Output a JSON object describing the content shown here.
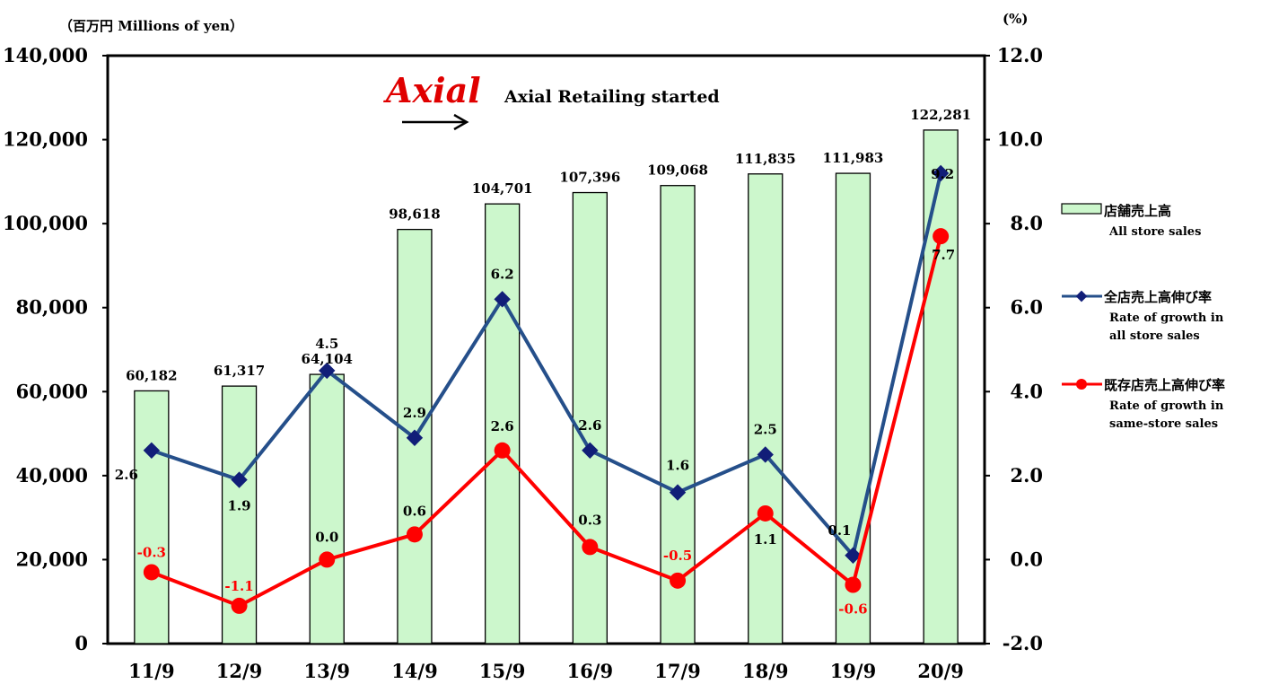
{
  "chart_data": {
    "type": "bar",
    "categories": [
      "11/9",
      "12/9",
      "13/9",
      "14/9",
      "15/9",
      "16/9",
      "17/9",
      "18/9",
      "19/9",
      "20/9"
    ],
    "left_axis": {
      "unit_label": "（百万円 Millions of yen）",
      "ylim": [
        0,
        140000
      ],
      "ticks": [
        "0",
        "20,000",
        "40,000",
        "60,000",
        "80,000",
        "100,000",
        "120,000",
        "140,000"
      ]
    },
    "right_axis": {
      "unit_label": "(%)",
      "ylim": [
        -2.0,
        12.0
      ],
      "ticks": [
        "-2.0",
        "0.0",
        "2.0",
        "4.0",
        "6.0",
        "8.0",
        "10.0",
        "12.0"
      ]
    },
    "series": [
      {
        "name_ja": "店舗売上高",
        "name_en": "All store sales",
        "type": "bar",
        "axis": "left",
        "color": "#ccf7cc",
        "values": [
          60182,
          61317,
          64104,
          98618,
          104701,
          107396,
          109068,
          111835,
          111983,
          122281
        ],
        "labels": [
          "60,182",
          "61,317",
          "64,104",
          "98,618",
          "104,701",
          "107,396",
          "109,068",
          "111,835",
          "111,983",
          "122,281"
        ]
      },
      {
        "name_ja": "全店売上高伸び率",
        "name_en": "Rate of growth in all store sales",
        "type": "line",
        "axis": "right",
        "color": "#254f8a",
        "marker_color": "#111e78",
        "values": [
          2.6,
          1.9,
          4.5,
          2.9,
          6.2,
          2.6,
          1.6,
          2.5,
          0.1,
          9.2
        ],
        "labels": [
          "2.6",
          "1.9",
          "4.5",
          "2.9",
          "6.2",
          "2.6",
          "1.6",
          "2.5",
          "0.1",
          "9.2"
        ]
      },
      {
        "name_ja": "既存店売上高伸び率",
        "name_en": "Rate of growth in same-store sales",
        "type": "line",
        "axis": "right",
        "color": "#ff0000",
        "values": [
          -0.3,
          -1.1,
          0.0,
          0.6,
          2.6,
          0.3,
          -0.5,
          1.1,
          -0.6,
          7.7
        ],
        "labels": [
          "-0.3",
          "-1.1",
          "0.0",
          "0.6",
          "2.6",
          "0.3",
          "-0.5",
          "1.1",
          "-0.6",
          "7.7"
        ]
      }
    ],
    "legend": {
      "bar": {
        "ja": "店舗売上高",
        "en1": "All store sales"
      },
      "all": {
        "ja": "全店売上高伸び率",
        "en1": "Rate of growth in",
        "en2": "all store sales"
      },
      "same": {
        "ja": "既存店売上高伸び率",
        "en1": "Rate of growth in",
        "en2": "same-store sales"
      }
    },
    "annotation": {
      "logo": "Axial",
      "text": "Axial Retailing started"
    },
    "grid": false
  }
}
